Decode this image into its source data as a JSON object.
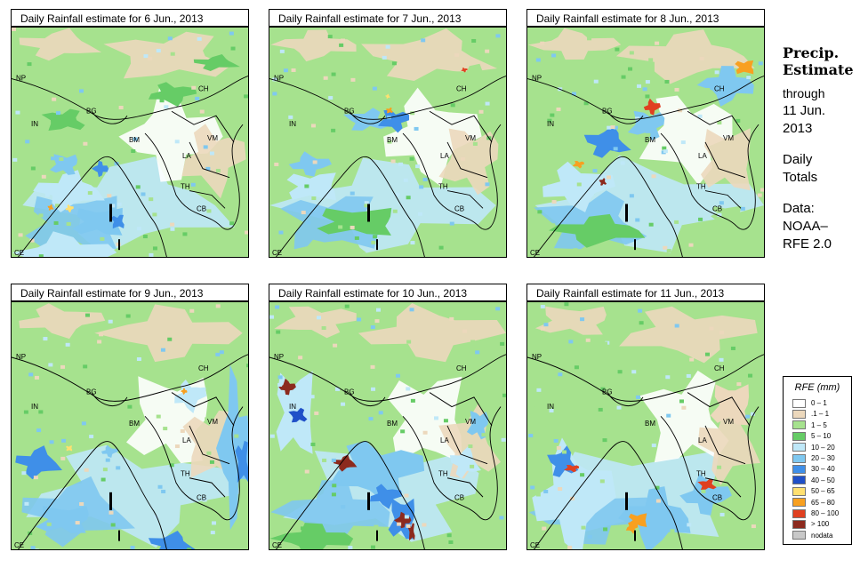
{
  "panels": [
    {
      "title": "Daily Rainfall estimate for  6 Jun., 2013"
    },
    {
      "title": "Daily Rainfall estimate for  7 Jun., 2013"
    },
    {
      "title": "Daily Rainfall estimate for  8 Jun., 2013"
    },
    {
      "title": "Daily Rainfall estimate for  9 Jun., 2013"
    },
    {
      "title": "Daily Rainfall estimate for  10 Jun., 2013"
    },
    {
      "title": "Daily Rainfall estimate for  11 Jun., 2013"
    }
  ],
  "map_labels": [
    "NP",
    "IN",
    "BG",
    "BM",
    "CH",
    "VM",
    "LA",
    "TH",
    "CB",
    "CE"
  ],
  "sidebar": {
    "title_line1": "Precip.",
    "title_line2": "Estimate",
    "through": "through",
    "date_line1": "11 Jun.",
    "date_line2": "2013",
    "daily_line1": "Daily",
    "daily_line2": "Totals",
    "data_line1": "Data:",
    "data_line2": "NOAA–",
    "data_line3": "RFE 2.0"
  },
  "legend": {
    "title": "RFE (mm)",
    "items": [
      {
        "label": "0 – 1",
        "color": "#ffffff"
      },
      {
        "label": ".1 – 1",
        "color": "#ecd8bc"
      },
      {
        "label": "1 – 5",
        "color": "#a6e28e"
      },
      {
        "label": "5 – 10",
        "color": "#66cc66"
      },
      {
        "label": "10 – 20",
        "color": "#bfe8f8"
      },
      {
        "label": "20 – 30",
        "color": "#7fc8f0"
      },
      {
        "label": "30 – 40",
        "color": "#3f8fe8"
      },
      {
        "label": "40 – 50",
        "color": "#2050c8"
      },
      {
        "label": "50 – 65",
        "color": "#ffe070"
      },
      {
        "label": "65 – 80",
        "color": "#f8a020"
      },
      {
        "label": "80 – 100",
        "color": "#e04020"
      },
      {
        "label": "> 100",
        "color": "#8c2a1e"
      },
      {
        "label": "nodata",
        "color": "#c8c8c8"
      }
    ]
  }
}
